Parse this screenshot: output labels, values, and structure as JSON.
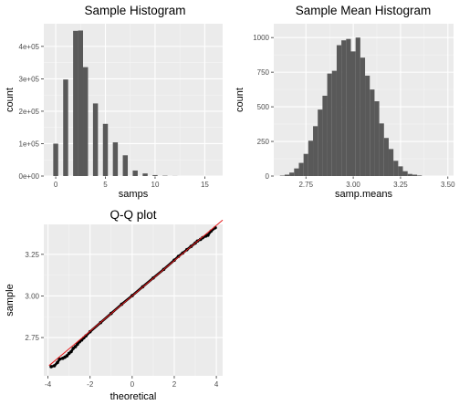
{
  "chart_data": [
    {
      "type": "bar",
      "title": "Sample Histogram",
      "xlabel": "samps",
      "ylabel": "count",
      "xlim": [
        -1.2,
        16.8
      ],
      "ylim": [
        0,
        470000
      ],
      "x_ticks": [
        0,
        5,
        10,
        15
      ],
      "y_ticks": [
        0,
        100000,
        200000,
        300000,
        400000
      ],
      "y_tick_labels": [
        "0e+00",
        "1e+05",
        "2e+05",
        "3e+05",
        "4e+05"
      ],
      "bar_width": 0.5,
      "x": [
        0,
        1,
        2,
        2.5,
        3,
        4,
        5,
        6,
        7,
        8,
        9,
        10,
        11,
        12
      ],
      "values": [
        100000,
        298000,
        448000,
        449000,
        336000,
        224000,
        161000,
        104000,
        64000,
        17000,
        8000,
        3000,
        1000,
        300
      ],
      "grid": true
    },
    {
      "type": "bar",
      "title": "Sample Mean Histogram",
      "xlabel": "samp.means",
      "ylabel": "count",
      "xlim": [
        2.58,
        3.53
      ],
      "ylim": [
        0,
        1100
      ],
      "x_ticks": [
        2.75,
        3.0,
        3.25,
        3.5
      ],
      "x_tick_labels": [
        "2.75",
        "3.00",
        "3.25",
        "3.50"
      ],
      "y_ticks": [
        0,
        250,
        500,
        750,
        1000
      ],
      "bin_width": 0.025,
      "bin_start": 2.6125,
      "values": [
        3,
        10,
        25,
        55,
        95,
        160,
        255,
        360,
        480,
        580,
        740,
        760,
        945,
        980,
        990,
        900,
        1000,
        855,
        725,
        625,
        540,
        380,
        275,
        195,
        110,
        70,
        35,
        15,
        10,
        4
      ],
      "grid": true
    },
    {
      "type": "scatter",
      "title": "Q-Q plot",
      "xlabel": "theoretical",
      "ylabel": "sample",
      "xlim": [
        -4.2,
        4.3
      ],
      "ylim": [
        2.52,
        3.43
      ],
      "x_ticks": [
        -4,
        -2,
        0,
        2,
        4
      ],
      "y_ticks": [
        2.75,
        3.0,
        3.25
      ],
      "y_tick_labels": [
        "2.75",
        "3.00",
        "3.25"
      ],
      "reference_line": {
        "intercept": 3.0,
        "slope": 0.106,
        "color": "#e41a1c"
      },
      "points": [
        [
          -3.85,
          2.575
        ],
        [
          -3.7,
          2.58
        ],
        [
          -3.55,
          2.6
        ],
        [
          -3.45,
          2.62
        ],
        [
          -3.3,
          2.625
        ],
        [
          -3.2,
          2.632
        ],
        [
          -3.1,
          2.64
        ],
        [
          -3.0,
          2.655
        ],
        [
          -2.9,
          2.665
        ],
        [
          -2.8,
          2.685
        ],
        [
          -2.7,
          2.695
        ],
        [
          -2.6,
          2.71
        ],
        [
          -2.5,
          2.725
        ],
        [
          -2.4,
          2.735
        ],
        [
          -2.3,
          2.748
        ],
        [
          -2.2,
          2.76
        ],
        [
          -2.0,
          2.785
        ],
        [
          -1.5,
          2.84
        ],
        [
          -1.0,
          2.895
        ],
        [
          -0.5,
          2.95
        ],
        [
          0.0,
          3.002
        ],
        [
          0.5,
          3.055
        ],
        [
          1.0,
          3.108
        ],
        [
          1.5,
          3.16
        ],
        [
          2.0,
          3.215
        ],
        [
          2.2,
          3.238
        ],
        [
          2.4,
          3.258
        ],
        [
          2.6,
          3.278
        ],
        [
          2.8,
          3.298
        ],
        [
          3.0,
          3.318
        ],
        [
          3.1,
          3.33
        ],
        [
          3.25,
          3.34
        ],
        [
          3.35,
          3.35
        ],
        [
          3.5,
          3.36
        ],
        [
          3.6,
          3.365
        ],
        [
          3.75,
          3.39
        ],
        [
          3.95,
          3.41
        ]
      ],
      "grid": true
    }
  ]
}
